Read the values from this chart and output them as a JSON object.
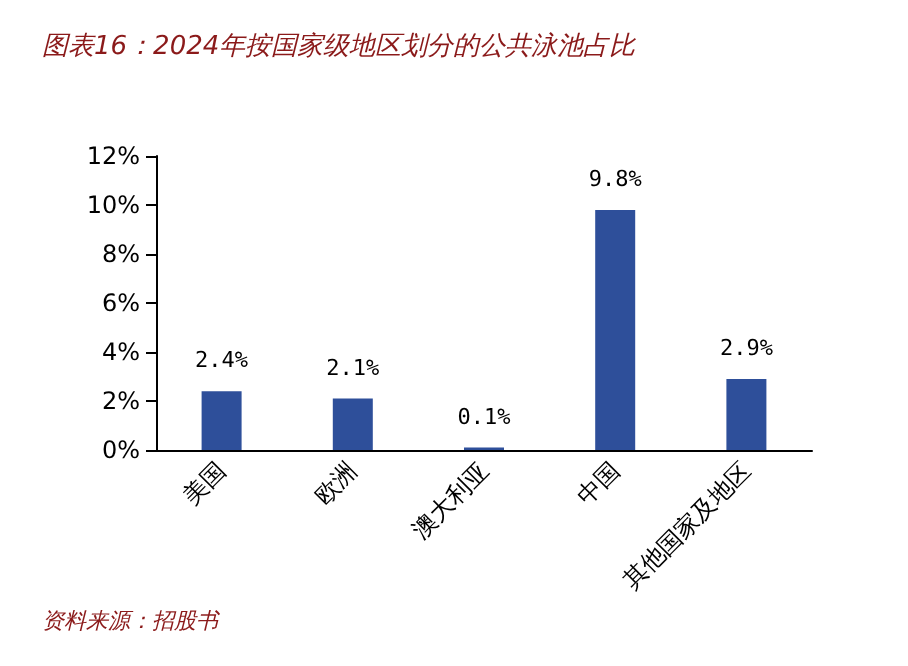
{
  "chart_data": {
    "type": "bar",
    "title": "图表16：2024年按国家级地区划分的公共泳池占比",
    "categories": [
      "美国",
      "欧洲",
      "澳大利亚",
      "中国",
      "其他国家及地区"
    ],
    "values": [
      2.4,
      2.1,
      0.1,
      9.8,
      2.9
    ],
    "value_labels": [
      "2.4%",
      "2.1%",
      "0.1%",
      "9.8%",
      "2.9%"
    ],
    "color": "#2e4f9a",
    "ylim": [
      0,
      12
    ],
    "yticks": [
      {
        "value": 0,
        "label": "0%"
      },
      {
        "value": 2,
        "label": "2%"
      },
      {
        "value": 4,
        "label": "4%"
      },
      {
        "value": 6,
        "label": "6%"
      },
      {
        "value": 8,
        "label": "8%"
      },
      {
        "value": 10,
        "label": "10%"
      },
      {
        "value": 12,
        "label": "12%"
      }
    ],
    "grid": false,
    "annotations": [
      "资料来源：招股书"
    ]
  }
}
